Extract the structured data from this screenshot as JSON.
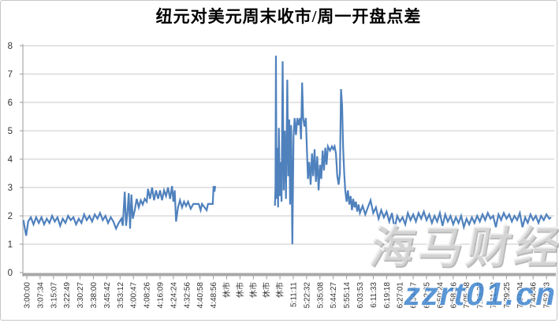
{
  "window": {
    "title": "纽元对美元周末收市/周一开盘点差"
  },
  "watermark": {
    "brand": "海马财经",
    "site": "zzrt01.cn"
  },
  "colors": {
    "line": "#4F81BD",
    "grid": "#c9c9c9",
    "axis": "#9a9a9a",
    "axis_bar": "#a8a8a8",
    "text": "#333333",
    "title_text": "#000000",
    "watermark_blue": "#3f86cf"
  },
  "chart_data": {
    "type": "line",
    "title": "纽元对美元周末收市/周一开盘点差",
    "xlabel": "",
    "ylabel": "",
    "ylim": [
      0,
      8
    ],
    "yticks": [
      0,
      1,
      2,
      3,
      4,
      5,
      6,
      7,
      8
    ],
    "grid": true,
    "legend_position": "none",
    "closed_market_label": "休市",
    "categories": [
      "3:00:00",
      "3:07:34",
      "3:15:07",
      "3:22:49",
      "3:30:27",
      "3:38:00",
      "3:45:42",
      "3:53:12",
      "4:00:47",
      "4:08:26",
      "4:16:09",
      "4:24:24",
      "4:32:56",
      "4:40:58",
      "4:48:56",
      "休市",
      "休市",
      "休市",
      "休市",
      "休市",
      "5:11:11",
      "5:22:32",
      "5:35:08",
      "5:44:27",
      "5:55:14",
      "6:03:53",
      "6:11:33",
      "6:19:18",
      "6:27:01",
      "6:34:47",
      "6:42:35",
      "6:50:24",
      "6:58:16",
      "7:05:58",
      "7:13:37",
      "7:21:28",
      "7:29:25",
      "7:37:04",
      "7:44:46",
      "7:52:33"
    ],
    "series": [
      {
        "name": "纽元对美元周末收市/周一开盘点差",
        "color": "#4F81BD",
        "points": [
          [
            -0.25,
            1.85
          ],
          [
            -0.15,
            1.55
          ],
          [
            -0.05,
            1.3
          ],
          [
            0.1,
            1.8
          ],
          [
            0.3,
            1.95
          ],
          [
            0.5,
            1.7
          ],
          [
            0.7,
            1.95
          ],
          [
            0.9,
            1.75
          ],
          [
            1.1,
            1.95
          ],
          [
            1.3,
            1.7
          ],
          [
            1.5,
            1.9
          ],
          [
            1.7,
            1.75
          ],
          [
            1.9,
            2.0
          ],
          [
            2.1,
            1.8
          ],
          [
            2.3,
            1.95
          ],
          [
            2.5,
            1.65
          ],
          [
            2.7,
            1.9
          ],
          [
            2.9,
            1.75
          ],
          [
            3.1,
            2.0
          ],
          [
            3.3,
            1.85
          ],
          [
            3.5,
            1.95
          ],
          [
            3.7,
            1.7
          ],
          [
            3.9,
            1.9
          ],
          [
            4.1,
            1.75
          ],
          [
            4.3,
            2.05
          ],
          [
            4.5,
            1.85
          ],
          [
            4.7,
            2.0
          ],
          [
            4.9,
            1.8
          ],
          [
            5.1,
            2.05
          ],
          [
            5.3,
            1.9
          ],
          [
            5.5,
            2.1
          ],
          [
            5.7,
            1.85
          ],
          [
            5.9,
            2.0
          ],
          [
            6.1,
            1.75
          ],
          [
            6.3,
            1.95
          ],
          [
            6.5,
            1.8
          ],
          [
            6.7,
            1.55
          ],
          [
            6.9,
            1.75
          ],
          [
            7.1,
            1.9
          ],
          [
            7.2,
            1.65
          ],
          [
            7.35,
            2.85
          ],
          [
            7.45,
            1.65
          ],
          [
            7.55,
            2.1
          ],
          [
            7.65,
            2.8
          ],
          [
            7.75,
            1.55
          ],
          [
            7.85,
            2.75
          ],
          [
            7.95,
            1.9
          ],
          [
            8.1,
            2.2
          ],
          [
            8.25,
            2.6
          ],
          [
            8.4,
            2.3
          ],
          [
            8.55,
            2.55
          ],
          [
            8.7,
            2.4
          ],
          [
            8.85,
            2.6
          ],
          [
            9.0,
            2.5
          ],
          [
            9.1,
            2.95
          ],
          [
            9.25,
            2.6
          ],
          [
            9.4,
            3.0
          ],
          [
            9.55,
            2.55
          ],
          [
            9.7,
            2.9
          ],
          [
            9.85,
            2.6
          ],
          [
            10.0,
            2.9
          ],
          [
            10.15,
            2.55
          ],
          [
            10.3,
            2.9
          ],
          [
            10.45,
            2.7
          ],
          [
            10.6,
            3.0
          ],
          [
            10.75,
            2.6
          ],
          [
            10.9,
            3.05
          ],
          [
            11.0,
            2.5
          ],
          [
            11.1,
            2.9
          ],
          [
            11.2,
            1.8
          ],
          [
            11.35,
            2.3
          ],
          [
            11.5,
            2.55
          ],
          [
            11.65,
            2.3
          ],
          [
            11.8,
            2.5
          ],
          [
            11.95,
            2.35
          ],
          [
            12.1,
            2.5
          ],
          [
            12.3,
            2.25
          ],
          [
            12.5,
            2.42
          ],
          [
            12.9,
            2.42
          ],
          [
            13.05,
            2.2
          ],
          [
            13.15,
            2.42
          ],
          [
            13.5,
            2.2
          ],
          [
            13.6,
            2.42
          ],
          [
            13.95,
            2.42
          ],
          [
            14.02,
            3.05
          ],
          [
            14.08,
            2.85
          ],
          [
            14.14,
            3.05
          ],
          null,
          [
            18.62,
            2.36
          ],
          [
            18.66,
            3.0
          ],
          [
            18.7,
            7.65
          ],
          [
            18.74,
            2.6
          ],
          [
            18.8,
            4.4
          ],
          [
            18.86,
            2.3
          ],
          [
            18.92,
            5.1
          ],
          [
            18.98,
            2.7
          ],
          [
            19.05,
            3.9
          ],
          [
            19.12,
            2.5
          ],
          [
            19.2,
            7.45
          ],
          [
            19.28,
            2.9
          ],
          [
            19.36,
            5.0
          ],
          [
            19.45,
            2.6
          ],
          [
            19.55,
            6.8
          ],
          [
            19.62,
            3.4
          ],
          [
            19.7,
            5.4
          ],
          [
            19.76,
            2.4
          ],
          [
            19.84,
            5.2
          ],
          [
            19.93,
            1.0
          ],
          [
            20.02,
            4.8
          ],
          [
            20.1,
            5.45
          ],
          [
            20.2,
            4.85
          ],
          [
            20.3,
            5.45
          ],
          [
            20.4,
            5.2
          ],
          [
            20.5,
            5.45
          ],
          [
            20.58,
            4.7
          ],
          [
            20.66,
            6.7
          ],
          [
            20.74,
            5.45
          ],
          [
            20.84,
            5.15
          ],
          [
            20.94,
            5.45
          ],
          [
            21.02,
            4.4
          ],
          [
            21.1,
            3.3
          ],
          [
            21.2,
            3.9
          ],
          [
            21.3,
            3.1
          ],
          [
            21.4,
            4.2
          ],
          [
            21.5,
            3.4
          ],
          [
            21.6,
            4.35
          ],
          [
            21.7,
            3.2
          ],
          [
            21.8,
            4.1
          ],
          [
            21.9,
            2.9
          ],
          [
            22.0,
            3.8
          ],
          [
            22.1,
            3.3
          ],
          [
            22.2,
            4.3
          ],
          [
            22.3,
            3.6
          ],
          [
            22.4,
            4.4
          ],
          [
            22.5,
            3.8
          ],
          [
            22.6,
            4.45
          ],
          [
            22.75,
            4.3
          ],
          [
            22.9,
            4.45
          ],
          [
            23.0,
            4.35
          ],
          [
            23.1,
            4.45
          ],
          [
            23.2,
            4.2
          ],
          [
            23.3,
            3.4
          ],
          [
            23.4,
            3.1
          ],
          [
            23.5,
            3.5
          ],
          [
            23.58,
            6.47
          ],
          [
            23.66,
            5.9
          ],
          [
            23.74,
            4.4
          ],
          [
            23.82,
            3.5
          ],
          [
            23.9,
            2.9
          ],
          [
            24.0,
            2.5
          ],
          [
            24.1,
            2.9
          ],
          [
            24.2,
            2.4
          ],
          [
            24.3,
            2.7
          ],
          [
            24.4,
            2.2
          ],
          [
            24.5,
            2.6
          ],
          [
            24.6,
            2.3
          ],
          [
            24.7,
            2.5
          ],
          [
            24.8,
            2.15
          ],
          [
            24.9,
            2.4
          ],
          [
            25.0,
            2.1
          ],
          [
            25.2,
            2.35
          ],
          [
            25.4,
            2.05
          ],
          [
            25.6,
            2.3
          ],
          [
            25.8,
            2.55
          ],
          [
            26.0,
            2.1
          ],
          [
            26.2,
            2.3
          ],
          [
            26.4,
            1.9
          ],
          [
            26.6,
            2.2
          ],
          [
            26.8,
            1.95
          ],
          [
            27.0,
            2.15
          ],
          [
            27.2,
            1.8
          ],
          [
            27.4,
            2.1
          ],
          [
            27.6,
            1.55
          ],
          [
            27.8,
            2.0
          ],
          [
            28.0,
            1.8
          ],
          [
            28.2,
            1.95
          ],
          [
            28.4,
            1.7
          ],
          [
            28.6,
            2.1
          ],
          [
            28.8,
            1.85
          ],
          [
            29.0,
            2.05
          ],
          [
            29.2,
            1.8
          ],
          [
            29.4,
            2.1
          ],
          [
            29.6,
            1.9
          ],
          [
            29.8,
            2.15
          ],
          [
            30.0,
            1.85
          ],
          [
            30.2,
            2.05
          ],
          [
            30.4,
            1.75
          ],
          [
            30.6,
            2.0
          ],
          [
            30.8,
            1.8
          ],
          [
            31.0,
            2.1
          ],
          [
            31.2,
            1.65
          ],
          [
            31.4,
            2.05
          ],
          [
            31.6,
            1.8
          ],
          [
            31.8,
            2.0
          ],
          [
            32.0,
            1.7
          ],
          [
            32.2,
            1.95
          ],
          [
            32.4,
            1.75
          ],
          [
            32.6,
            2.0
          ],
          [
            32.8,
            1.6
          ],
          [
            33.0,
            1.9
          ],
          [
            33.2,
            1.7
          ],
          [
            33.4,
            1.95
          ],
          [
            33.6,
            1.75
          ],
          [
            33.8,
            2.0
          ],
          [
            34.0,
            1.8
          ],
          [
            34.2,
            2.05
          ],
          [
            34.4,
            1.85
          ],
          [
            34.6,
            2.1
          ],
          [
            34.8,
            1.9
          ],
          [
            35.0,
            2.0
          ],
          [
            35.2,
            1.6
          ],
          [
            35.4,
            2.05
          ],
          [
            35.6,
            1.85
          ],
          [
            35.8,
            2.1
          ],
          [
            36.0,
            1.9
          ],
          [
            36.2,
            2.05
          ],
          [
            36.4,
            1.8
          ],
          [
            36.6,
            2.0
          ],
          [
            36.8,
            1.85
          ],
          [
            37.0,
            2.1
          ],
          [
            37.2,
            1.6
          ],
          [
            37.4,
            1.95
          ],
          [
            37.6,
            1.75
          ],
          [
            37.8,
            2.05
          ],
          [
            38.0,
            1.85
          ],
          [
            38.2,
            2.0
          ],
          [
            38.4,
            1.75
          ],
          [
            38.6,
            2.0
          ],
          [
            38.8,
            1.85
          ],
          [
            39.0,
            2.05
          ],
          [
            39.2,
            1.9
          ],
          [
            39.35,
            1.95
          ]
        ]
      }
    ]
  }
}
